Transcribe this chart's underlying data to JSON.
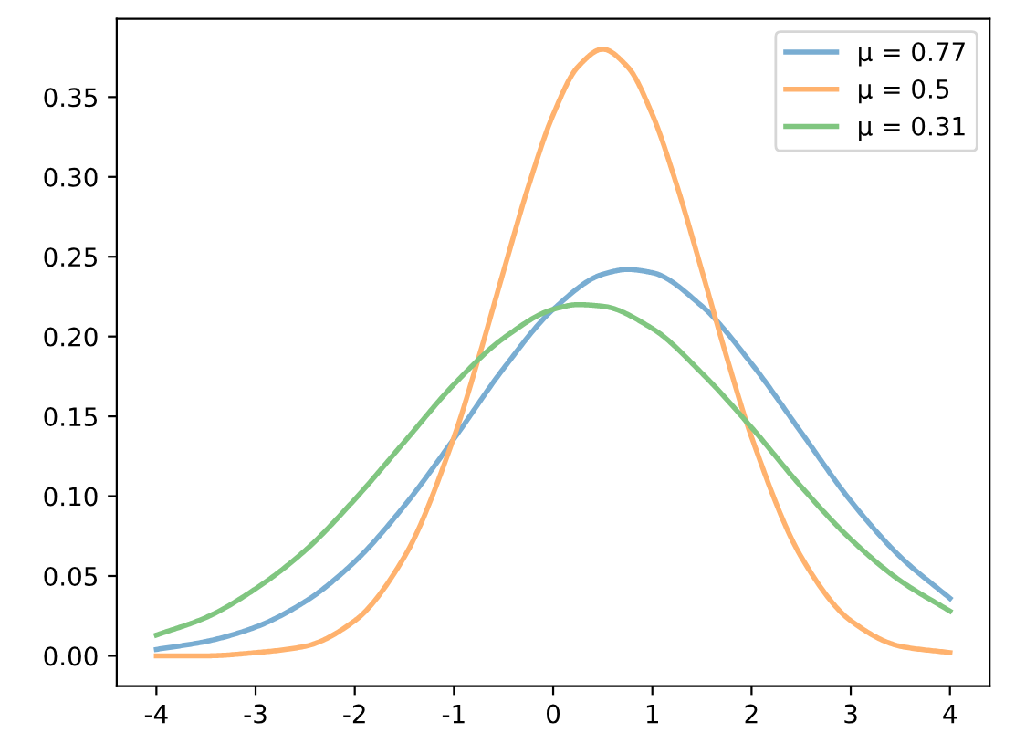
{
  "chart_data": {
    "type": "line",
    "series": [
      {
        "name": "μ = 0.77",
        "color": "#79add2",
        "x": [
          -4,
          -3.5,
          -3,
          -2.5,
          -2,
          -1.5,
          -1,
          -0.5,
          0,
          0.5,
          0.75,
          1,
          1.5,
          2,
          2.5,
          3,
          3.5,
          4
        ],
        "values": [
          0.004,
          0.009,
          0.018,
          0.034,
          0.059,
          0.094,
          0.136,
          0.18,
          0.217,
          0.239,
          0.242,
          0.24,
          0.219,
          0.183,
          0.14,
          0.097,
          0.062,
          0.036
        ]
      },
      {
        "name": "μ = 0.5",
        "color": "#ffb26e",
        "x": [
          -4,
          -3.5,
          -3,
          -2.5,
          -2,
          -1.5,
          -1,
          -0.75,
          -0.5,
          -0.25,
          0,
          0.25,
          0.5,
          0.75,
          1,
          1.25,
          1.5,
          1.75,
          2,
          2.5,
          3,
          3.5,
          4
        ],
        "values": [
          0.0,
          0.0,
          0.002,
          0.006,
          0.022,
          0.062,
          0.137,
          0.187,
          0.241,
          0.294,
          0.339,
          0.369,
          0.38,
          0.369,
          0.339,
          0.294,
          0.241,
          0.187,
          0.137,
          0.062,
          0.022,
          0.006,
          0.002
        ]
      },
      {
        "name": "μ = 0.31",
        "color": "#80c680",
        "x": [
          -4,
          -3.5,
          -3,
          -2.5,
          -2,
          -1.5,
          -1,
          -0.5,
          0,
          0.25,
          0.5,
          1,
          1.5,
          2,
          2.5,
          3,
          3.5,
          4
        ],
        "values": [
          0.013,
          0.024,
          0.042,
          0.066,
          0.098,
          0.134,
          0.17,
          0.199,
          0.217,
          0.22,
          0.219,
          0.205,
          0.177,
          0.143,
          0.106,
          0.073,
          0.047,
          0.028
        ]
      }
    ],
    "xlim": [
      -4.4,
      4.4
    ],
    "ylim": [
      -0.019,
      0.399
    ],
    "xticks": [
      -4,
      -3,
      -2,
      -1,
      0,
      1,
      2,
      3,
      4
    ],
    "yticks": [
      {
        "value": 0,
        "label": "0.00"
      },
      {
        "value": 0.05,
        "label": "0.05"
      },
      {
        "value": 0.1,
        "label": "0.10"
      },
      {
        "value": 0.15,
        "label": "0.15"
      },
      {
        "value": 0.2,
        "label": "0.20"
      },
      {
        "value": 0.25,
        "label": "0.25"
      },
      {
        "value": 0.3,
        "label": "0.30"
      },
      {
        "value": 0.35,
        "label": "0.35"
      }
    ],
    "legend": "top right",
    "grid": false,
    "line_style": "solid",
    "marker": "none"
  }
}
